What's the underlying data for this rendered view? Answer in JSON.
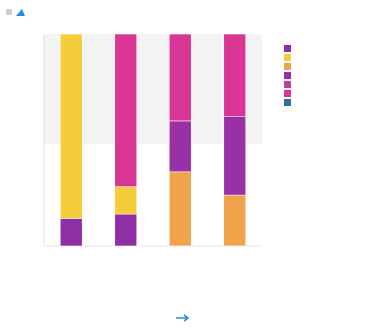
{
  "title": "",
  "caption": "",
  "footer_link": "",
  "colors": {
    "background": "#ffffff",
    "plot_background": "#ffffff",
    "shade_band": "#f3f3f3",
    "axis": "#dddddd",
    "title_icon": "#2a8ad6",
    "footer_link": "#2a8ad6"
  },
  "chart_data": {
    "type": "bar",
    "stacked": true,
    "categories": [
      "",
      "",
      "",
      ""
    ],
    "ylim": [
      0,
      100
    ],
    "yticks": [
      "",
      "",
      "",
      "",
      "",
      "",
      "",
      "",
      ""
    ],
    "midline": "",
    "grid": false,
    "legend_position": "right",
    "series": [
      {
        "name": "",
        "color": "#8e2fa6",
        "values": [
          13,
          15,
          0,
          0
        ]
      },
      {
        "name": "",
        "color": "#f5cc3a",
        "values": [
          87,
          13,
          0,
          0
        ]
      },
      {
        "name": "",
        "color": "#f0a34a",
        "values": [
          0,
          0,
          35,
          24
        ]
      },
      {
        "name": "",
        "color": "#9a30a5",
        "values": [
          0,
          0,
          24,
          37
        ]
      },
      {
        "name": "",
        "color": "#bf3d9f",
        "values": [
          0,
          0,
          0,
          0
        ]
      },
      {
        "name": "",
        "color": "#d83594",
        "values": [
          0,
          72,
          41,
          39
        ]
      },
      {
        "name": "",
        "color": "#2f6e9e",
        "values": [
          0,
          0,
          0,
          0
        ]
      }
    ],
    "data_labels": [
      [
        "",
        "",
        "",
        "",
        "",
        "",
        ""
      ],
      [
        "",
        "",
        "",
        "",
        "",
        "",
        ""
      ],
      [
        "",
        "",
        "",
        "",
        "",
        "",
        ""
      ],
      [
        "",
        "",
        "",
        "",
        "",
        "",
        ""
      ]
    ]
  }
}
